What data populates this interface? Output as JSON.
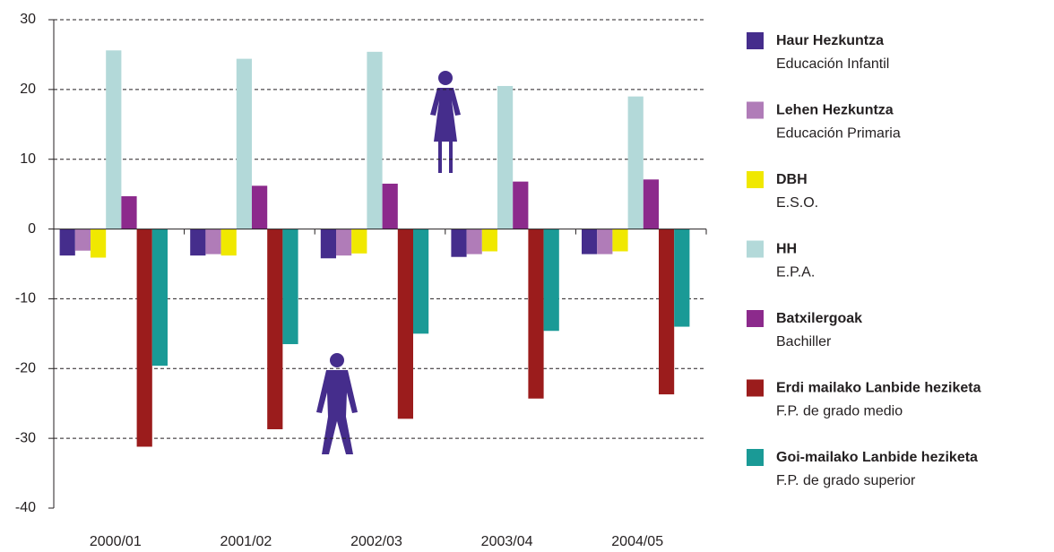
{
  "chart_data": {
    "type": "bar",
    "categories": [
      "2000/01",
      "2001/02",
      "2002/03",
      "2003/04",
      "2004/05"
    ],
    "series": [
      {
        "name": "Haur Hezkuntza",
        "name_es": "Educación Infantil",
        "color": "#452d8c",
        "values": [
          -3.8,
          -3.8,
          -4.2,
          -4.0,
          -3.6
        ]
      },
      {
        "name": "Lehen Hezkuntza",
        "name_es": "Educación Primaria",
        "color": "#b07cb8",
        "values": [
          -3.1,
          -3.6,
          -3.8,
          -3.6,
          -3.6
        ]
      },
      {
        "name": "DBH",
        "name_es": "E.S.O.",
        "color": "#f0e800",
        "values": [
          -4.1,
          -3.8,
          -3.5,
          -3.2,
          -3.2
        ]
      },
      {
        "name": "HH",
        "name_es": "E.P.A.",
        "color": "#b3d9d9",
        "values": [
          25.6,
          24.4,
          25.4,
          20.5,
          19.0
        ]
      },
      {
        "name": "Batxilergoak",
        "name_es": "Bachiller",
        "color": "#8c2a8c",
        "values": [
          4.7,
          6.2,
          6.5,
          6.8,
          7.1
        ]
      },
      {
        "name": "Erdi mailako Lanbide heziketa",
        "name_es": "F.P. de grado medio",
        "color": "#9b1c1c",
        "values": [
          -31.2,
          -28.7,
          -27.2,
          -24.3,
          -23.7
        ]
      },
      {
        "name": "Goi-mailako Lanbide heziketa",
        "name_es": "F.P. de grado superior",
        "color": "#1a9a96",
        "values": [
          -19.6,
          -16.5,
          -15.0,
          -14.6,
          -14.0
        ]
      }
    ],
    "ylim": [
      -40,
      30
    ],
    "yticks": [
      -40,
      -30,
      -20,
      -10,
      0,
      10,
      20,
      30
    ],
    "grid": true
  }
}
